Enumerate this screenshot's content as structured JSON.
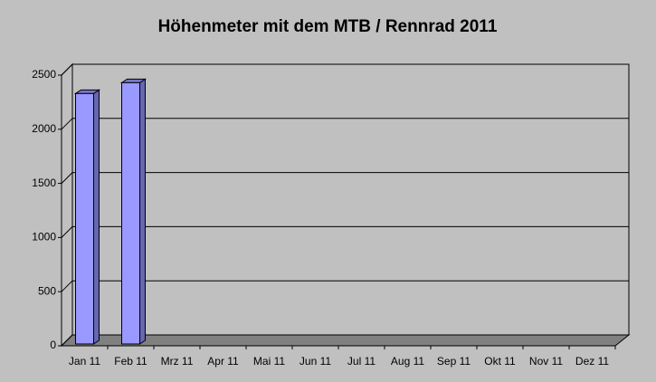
{
  "chart_data": {
    "type": "bar3d",
    "title": "Höhenmeter mit dem MTB / Rennrad 2011",
    "categories": [
      "Jan 11",
      "Feb 11",
      "Mrz 11",
      "Apr 11",
      "Mai 11",
      "Jun 11",
      "Jul 11",
      "Aug 11",
      "Sep 11",
      "Okt 11",
      "Nov 11",
      "Dez 11"
    ],
    "values": [
      2330,
      2430,
      null,
      null,
      null,
      null,
      null,
      null,
      null,
      null,
      null,
      null
    ],
    "color": "#9999ff",
    "ylim": [
      0,
      2500
    ],
    "yticks": [
      0,
      500,
      1000,
      1500,
      2000,
      2500
    ],
    "grid": true
  }
}
